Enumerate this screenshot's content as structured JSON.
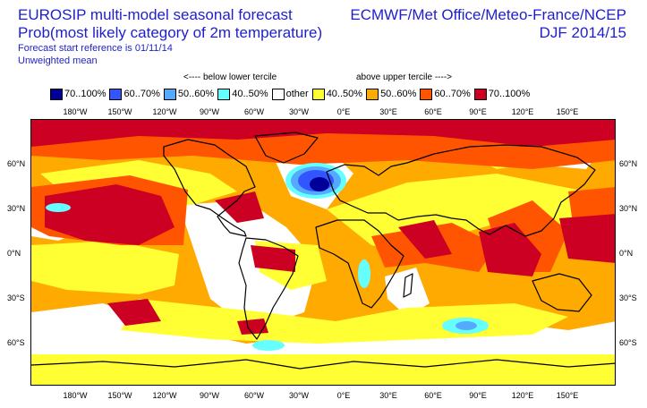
{
  "header": {
    "title_line1": "EUROSIP multi-model seasonal forecast",
    "title_line2": "Prob(most likely category of 2m temperature)",
    "subtitle_line1": "Forecast start reference is 01/11/14",
    "subtitle_line2": "Unweighted mean",
    "center_line1": "ECMWF/Met Office/Meteo-France/NCEP",
    "center_line2": "DJF 2014/15"
  },
  "legend": {
    "below_label": "<---- below lower tercile",
    "above_label": "above upper tercile ---->",
    "items": [
      {
        "label": "70..100%",
        "color": "#000099"
      },
      {
        "label": "60..70%",
        "color": "#3355ff"
      },
      {
        "label": "50..60%",
        "color": "#55aaff"
      },
      {
        "label": "40..50%",
        "color": "#66ffff"
      },
      {
        "label": "other",
        "color": "#ffffff"
      },
      {
        "label": "40..50%",
        "color": "#ffff33"
      },
      {
        "label": "50..60%",
        "color": "#ffaa00"
      },
      {
        "label": "60..70%",
        "color": "#ff5500"
      },
      {
        "label": "70..100%",
        "color": "#cc0022"
      }
    ]
  },
  "axes": {
    "lon_labels": [
      "180°W",
      "150°W",
      "120°W",
      "90°W",
      "60°W",
      "30°W",
      "0°E",
      "30°E",
      "60°E",
      "90°E",
      "120°E",
      "150°E"
    ],
    "lat_labels": [
      "60°N",
      "30°N",
      "0°N",
      "30°S",
      "60°S"
    ]
  }
}
